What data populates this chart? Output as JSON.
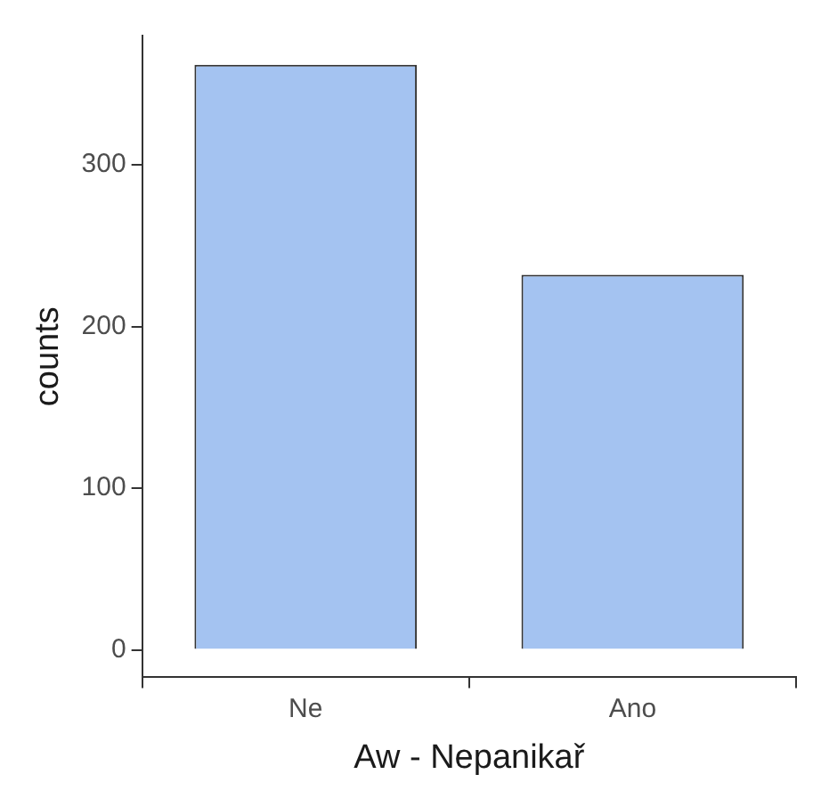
{
  "chart_data": {
    "type": "bar",
    "xlabel": "Aw - Nepanikař",
    "ylabel": "counts",
    "categories": [
      "Ne",
      "Ano"
    ],
    "values": [
      362,
      232
    ],
    "color": "#a4c3f1",
    "ylim": [
      -17,
      380
    ],
    "yticks": [
      0,
      100,
      200,
      300
    ],
    "grid": false,
    "legend": false
  }
}
